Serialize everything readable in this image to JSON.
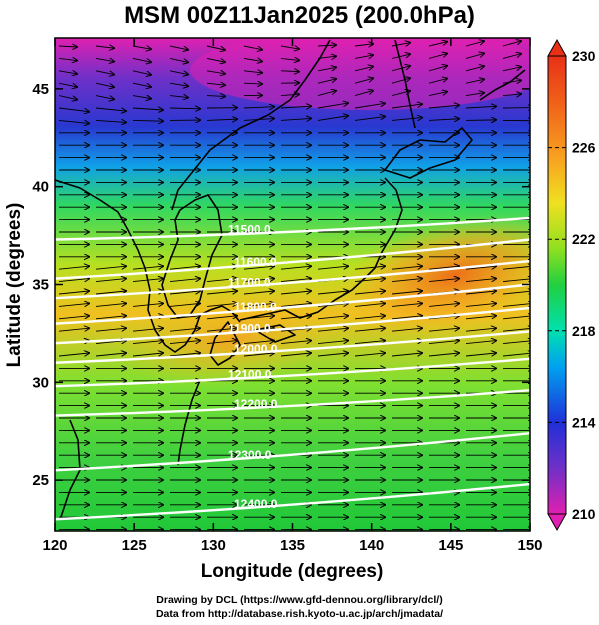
{
  "title": "MSM 00Z11Jan2025 (200.0hPa)",
  "xlabel": "Longitude (degrees)",
  "ylabel": "Latitude  (degrees)",
  "x_ticks": [
    "120",
    "125",
    "130",
    "135",
    "140",
    "145",
    "150"
  ],
  "y_ticks": [
    "25",
    "30",
    "35",
    "40",
    "45"
  ],
  "xlim": [
    120,
    150
  ],
  "ylim": [
    22.4,
    47.6
  ],
  "colorbar": {
    "ticks": [
      "230",
      "226",
      "222",
      "218",
      "214",
      "210"
    ],
    "range": [
      210,
      230
    ],
    "colors": [
      "#e020b0",
      "#7030c8",
      "#2030d8",
      "#00a0f0",
      "#00e0b0",
      "#20d040",
      "#90e020",
      "#f0e020",
      "#f8a020",
      "#f06018",
      "#e83018"
    ]
  },
  "contours": [
    {
      "label": "11500.0",
      "lat0": 37.3,
      "lat1": 38.4
    },
    {
      "label": "11600.0",
      "lat0": 35.3,
      "lat1": 37.3
    },
    {
      "label": "11700.0",
      "lat0": 34.3,
      "lat1": 36.2
    },
    {
      "label": "11800.0",
      "lat0": 33.0,
      "lat1": 35.0
    },
    {
      "label": "11900.0",
      "lat0": 32.0,
      "lat1": 33.8
    },
    {
      "label": "12000.0",
      "lat0": 31.0,
      "lat1": 32.6
    },
    {
      "label": "12100.0",
      "lat0": 29.8,
      "lat1": 31.2
    },
    {
      "label": "12200.0",
      "lat0": 28.3,
      "lat1": 29.6
    },
    {
      "label": "12300.0",
      "lat0": 25.5,
      "lat1": 27.4
    },
    {
      "label": "12400.0",
      "lat0": 23.0,
      "lat1": 24.8
    }
  ],
  "credits": {
    "line1": "Drawing by DCL (https://www.gfd-dennou.org/library/dcl/)",
    "line2": "Data from http://database.rish.kyoto-u.ac.jp/arch/jmadata/"
  }
}
